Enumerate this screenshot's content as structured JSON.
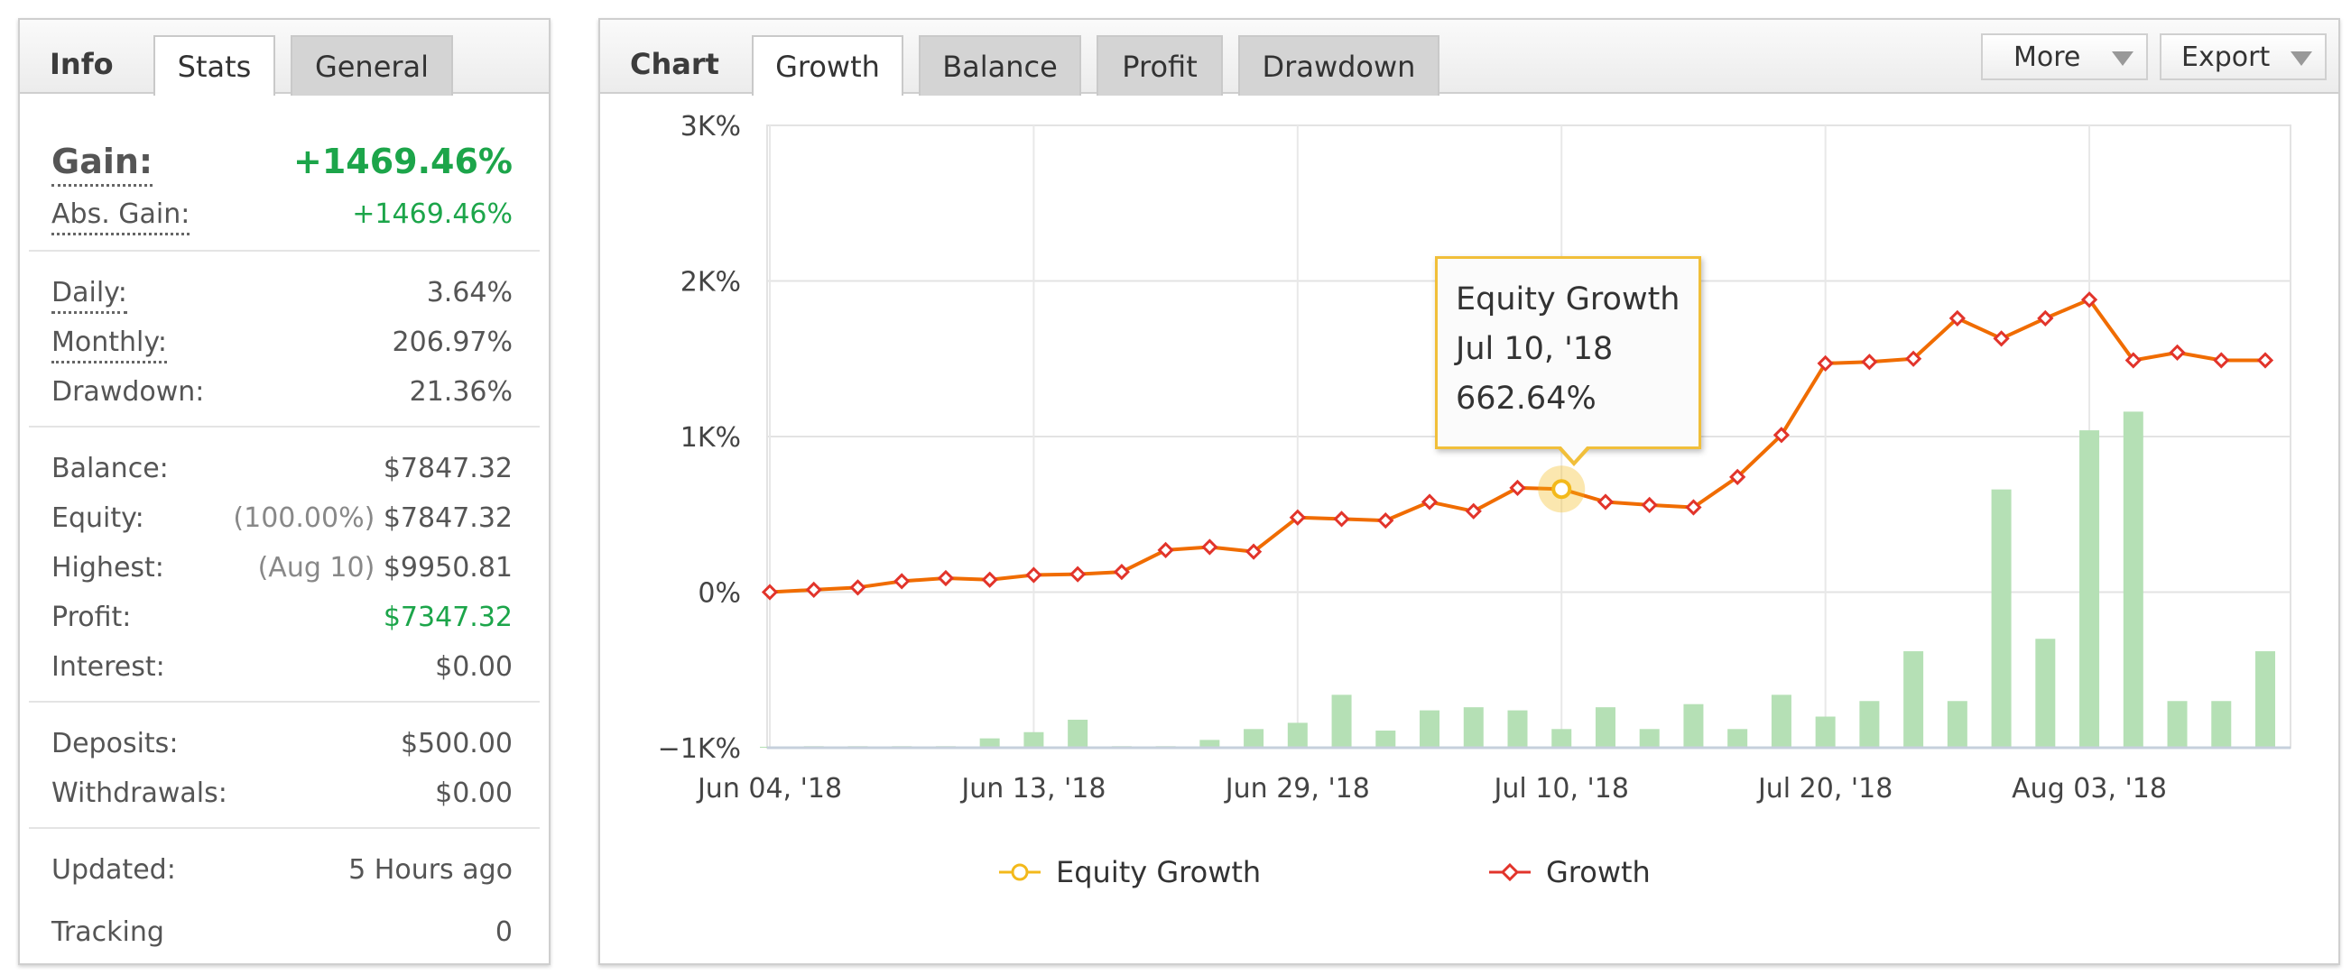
{
  "info_panel": {
    "title": "Info",
    "tabs": [
      {
        "label": "Stats",
        "active": true
      },
      {
        "label": "General",
        "active": false
      }
    ],
    "gain": {
      "label": "Gain:",
      "value": "+1469.46%"
    },
    "abs_gain": {
      "label": "Abs. Gain:",
      "value": "+1469.46%"
    },
    "daily": {
      "label": "Daily:",
      "value": "3.64%"
    },
    "monthly": {
      "label": "Monthly:",
      "value": "206.97%"
    },
    "drawdown": {
      "label": "Drawdown:",
      "value": "21.36%"
    },
    "balance": {
      "label": "Balance:",
      "value": "$7847.32"
    },
    "equity": {
      "label": "Equity:",
      "prefix": "(100.00%)",
      "value": "$7847.32"
    },
    "highest": {
      "label": "Highest:",
      "prefix": "(Aug 10)",
      "value": "$9950.81"
    },
    "profit": {
      "label": "Profit:",
      "value": "$7347.32"
    },
    "interest": {
      "label": "Interest:",
      "value": "$0.00"
    },
    "deposits": {
      "label": "Deposits:",
      "value": "$500.00"
    },
    "withdrawals": {
      "label": "Withdrawals:",
      "value": "$0.00"
    },
    "updated": {
      "label": "Updated:",
      "value": "5 Hours ago"
    },
    "tracking": {
      "label": "Tracking",
      "value": "0"
    }
  },
  "chart_panel": {
    "title": "Chart",
    "tabs": [
      {
        "label": "Growth",
        "active": true
      },
      {
        "label": "Balance",
        "active": false
      },
      {
        "label": "Profit",
        "active": false
      },
      {
        "label": "Drawdown",
        "active": false
      }
    ],
    "more_label": "More",
    "export_label": "Export",
    "tooltip": {
      "title": "Equity Growth",
      "date": "Jul 10, '18",
      "value": "662.64%"
    }
  },
  "colors": {
    "growth_line": "#f06c00",
    "growth_marker": "#e2342b",
    "equity": "#f3b91b",
    "bars": "#b5e0b5",
    "positive": "#1ca54a"
  },
  "chart_data": {
    "type": "line",
    "x_tick_labels": [
      "Jun 04, '18",
      "Jun 13, '18",
      "Jun 29, '18",
      "Jul 10, '18",
      "Jul 20, '18",
      "Aug 03, '18"
    ],
    "y_tick_labels": [
      "3K%",
      "2K%",
      "1K%",
      "0%",
      "−1K%"
    ],
    "ylim": [
      -1000,
      3000
    ],
    "grid": true,
    "legend_position": "bottom",
    "series": [
      {
        "name": "Growth",
        "values": [
          0,
          15,
          30,
          70,
          90,
          80,
          110,
          115,
          130,
          270,
          290,
          260,
          480,
          470,
          460,
          580,
          520,
          670,
          662.64,
          580,
          560,
          545,
          740,
          1010,
          1470,
          1480,
          1500,
          1760,
          1630,
          1760,
          1880,
          1490,
          1540,
          1490,
          1490
        ]
      },
      {
        "name": "Equity Growth",
        "values": [
          0,
          15,
          30,
          70,
          90,
          80,
          110,
          115,
          130,
          270,
          290,
          260,
          480,
          470,
          460,
          580,
          520,
          670,
          662.64,
          580,
          560,
          545,
          740,
          1010,
          1470,
          1480,
          1500,
          1760,
          1630,
          1760,
          1880,
          1490,
          1540,
          1490,
          1490
        ]
      }
    ],
    "bars": [
      3,
      5,
      5,
      5,
      5,
      30,
      50,
      90,
      5,
      5,
      25,
      60,
      80,
      170,
      55,
      120,
      130,
      120,
      60,
      130,
      60,
      140,
      60,
      170,
      100,
      150,
      310,
      150,
      830,
      350,
      1020,
      1080,
      150,
      150,
      310
    ]
  }
}
